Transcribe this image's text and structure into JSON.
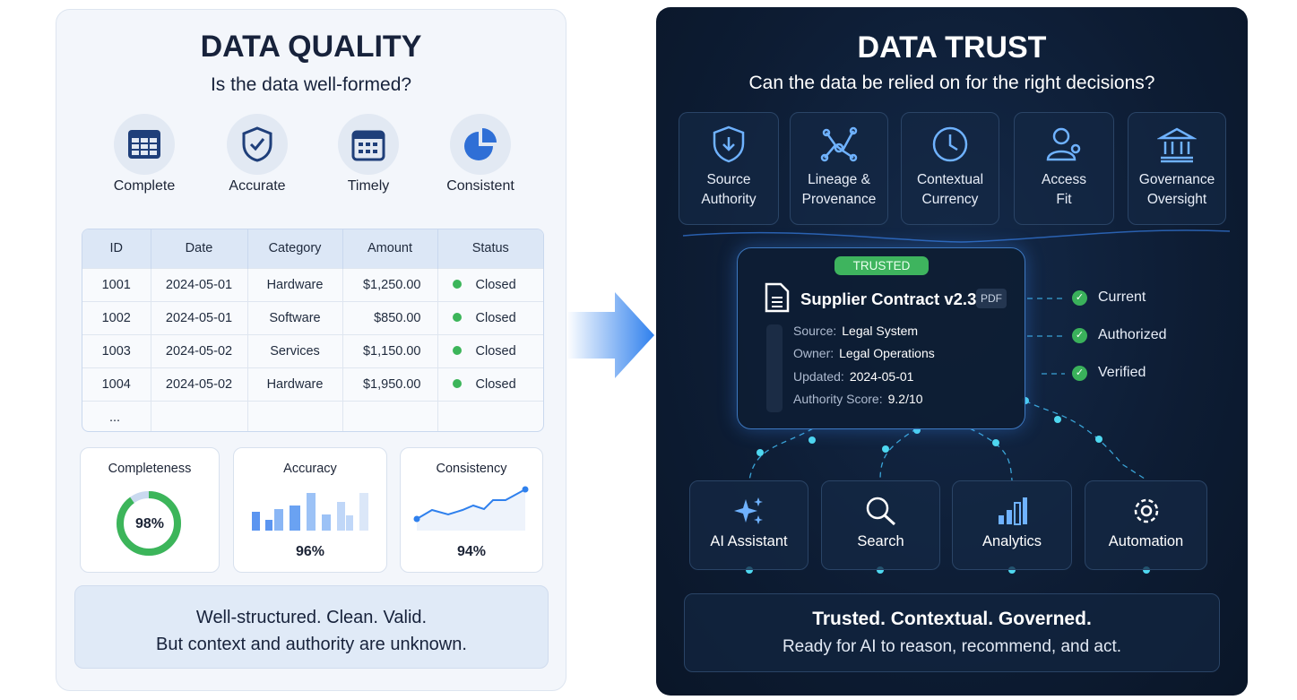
{
  "quality": {
    "title": "DATA QUALITY",
    "subtitle": "Is the data well-formed?",
    "icons": [
      {
        "label": "Complete",
        "icon": "table-icon"
      },
      {
        "label": "Accurate",
        "icon": "shield-check-icon"
      },
      {
        "label": "Timely",
        "icon": "calendar-icon"
      },
      {
        "label": "Consistent",
        "icon": "pie-chart-icon"
      }
    ],
    "table": {
      "headers": [
        "ID",
        "Date",
        "Category",
        "Amount",
        "Status"
      ],
      "rows": [
        [
          "1001",
          "2024-05-01",
          "Hardware",
          "$1,250.00",
          "Closed"
        ],
        [
          "1002",
          "2024-05-01",
          "Software",
          "$850.00",
          "Closed"
        ],
        [
          "1003",
          "2024-05-02",
          "Services",
          "$1,150.00",
          "Closed"
        ],
        [
          "1004",
          "2024-05-02",
          "Hardware",
          "$1,950.00",
          "Closed"
        ]
      ],
      "ellipsis": "..."
    },
    "metrics": [
      {
        "label": "Completeness",
        "value": "98%",
        "fraction": 0.98
      },
      {
        "label": "Accuracy",
        "value": "96%"
      },
      {
        "label": "Consistency",
        "value": "94%"
      }
    ],
    "footer_line1": "Well-structured. Clean. Valid.",
    "footer_line2": "But context and authority are unknown."
  },
  "trust": {
    "title": "DATA TRUST",
    "subtitle": "Can the data be relied on for the right decisions?",
    "pillars": [
      {
        "l1": "Source",
        "l2": "Authority"
      },
      {
        "l1": "Lineage &",
        "l2": "Provenance"
      },
      {
        "l1": "Contextual",
        "l2": "Currency"
      },
      {
        "l1": "Access",
        "l2": "Fit"
      },
      {
        "l1": "Governance",
        "l2": "Oversight"
      }
    ],
    "doc": {
      "badge": "TRUSTED",
      "name": "Supplier Contract v2.3",
      "type": "PDF",
      "fields": [
        {
          "k": "Source:",
          "v": "Legal System"
        },
        {
          "k": "Owner:",
          "v": "Legal Operations"
        },
        {
          "k": "Updated:",
          "v": "2024-05-01"
        },
        {
          "k": "Authority Score:",
          "v": "9.2/10"
        }
      ]
    },
    "checks": [
      "Current",
      "Authorized",
      "Verified"
    ],
    "consumers": [
      "AI Assistant",
      "Search",
      "Analytics",
      "Automation"
    ],
    "footer_line1": "Trusted. Contextual. Governed.",
    "footer_line2": "Ready for AI to reason, recommend, and act."
  },
  "colors": {
    "navy": "#17223b",
    "accent": "#2f80ed",
    "green": "#3cb55a",
    "dark_bg": "#0d1c33",
    "glow": "#4fd8f0"
  }
}
